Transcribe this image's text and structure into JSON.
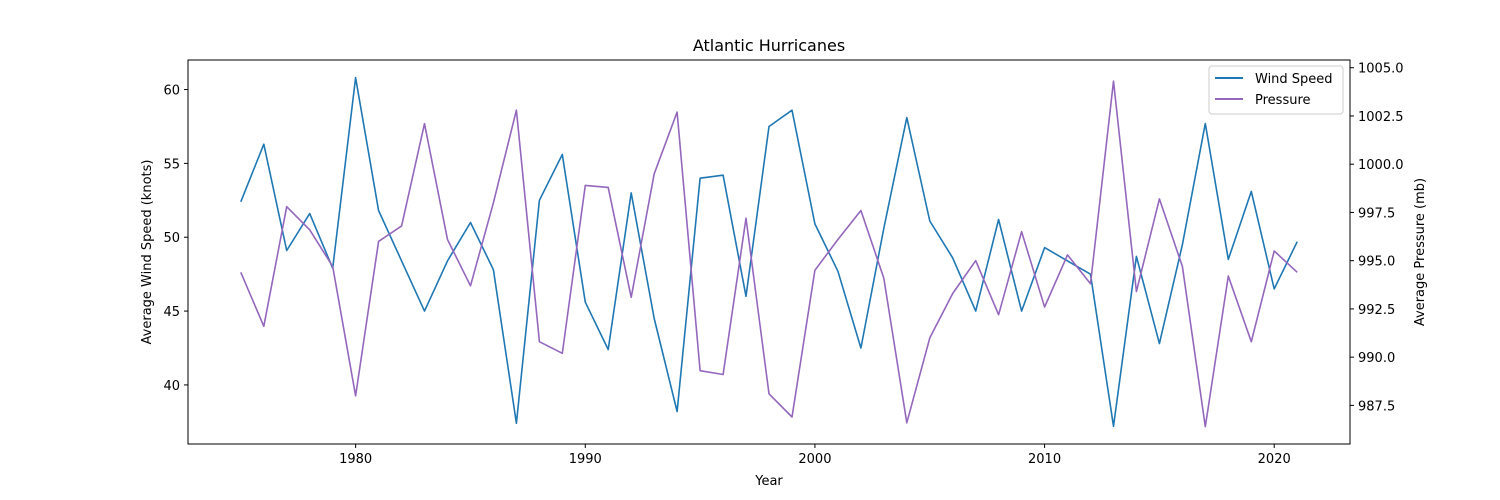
{
  "chart_data": {
    "type": "line",
    "title": "Atlantic Hurricanes",
    "xlabel": "Year",
    "ylabel": "Average Wind Speed (knots)",
    "y2label": "Average Pressure (mb)",
    "x": [
      1975,
      1976,
      1977,
      1978,
      1979,
      1980,
      1981,
      1982,
      1983,
      1984,
      1985,
      1986,
      1987,
      1988,
      1989,
      1990,
      1991,
      1992,
      1993,
      1994,
      1995,
      1996,
      1997,
      1998,
      1999,
      2000,
      2001,
      2002,
      2003,
      2004,
      2005,
      2006,
      2007,
      2008,
      2009,
      2010,
      2011,
      2012,
      2013,
      2014,
      2015,
      2016,
      2017,
      2018,
      2019,
      2020,
      2021
    ],
    "xlim": [
      1972.7,
      2023.3
    ],
    "xticks": [
      1980,
      1990,
      2000,
      2010,
      2020
    ],
    "ylim": [
      36.0,
      62.0
    ],
    "yticks": [
      40,
      45,
      50,
      55,
      60
    ],
    "y2lim": [
      985.5,
      1005.4
    ],
    "y2ticks": [
      987.5,
      990.0,
      992.5,
      995.0,
      997.5,
      1000.0,
      1002.5,
      1005.0
    ],
    "grid": false,
    "legend_position": "top-right",
    "series": [
      {
        "name": "Wind Speed",
        "axis": "left",
        "color": "#1f77b4",
        "values": [
          52.4,
          56.3,
          49.1,
          51.6,
          47.9,
          60.8,
          51.8,
          48.4,
          45.0,
          48.4,
          51.0,
          47.8,
          37.4,
          52.5,
          55.6,
          45.6,
          42.4,
          53.0,
          44.5,
          38.2,
          54.0,
          54.2,
          46.0,
          57.5,
          58.6,
          50.9,
          47.7,
          42.5,
          50.6,
          58.1,
          51.1,
          48.6,
          45.0,
          51.2,
          45.0,
          49.3,
          48.4,
          47.5,
          37.2,
          48.7,
          42.8,
          49.5,
          57.7,
          48.5,
          53.1,
          46.5,
          49.7
        ]
      },
      {
        "name": "Pressure",
        "axis": "right",
        "color": "#9467bd",
        "values": [
          994.4,
          991.6,
          997.8,
          996.6,
          994.7,
          988.0,
          996.0,
          996.8,
          1002.1,
          996.1,
          993.7,
          998.0,
          1002.8,
          990.8,
          990.2,
          998.9,
          998.8,
          993.1,
          999.5,
          1002.7,
          989.3,
          989.1,
          997.2,
          988.1,
          986.9,
          994.5,
          996.1,
          997.6,
          994.1,
          986.6,
          991.0,
          993.3,
          995.0,
          992.2,
          996.5,
          992.6,
          995.3,
          993.8,
          1004.3,
          993.4,
          998.2,
          994.7,
          986.4,
          994.2,
          990.8,
          995.5,
          994.4
        ]
      }
    ]
  }
}
